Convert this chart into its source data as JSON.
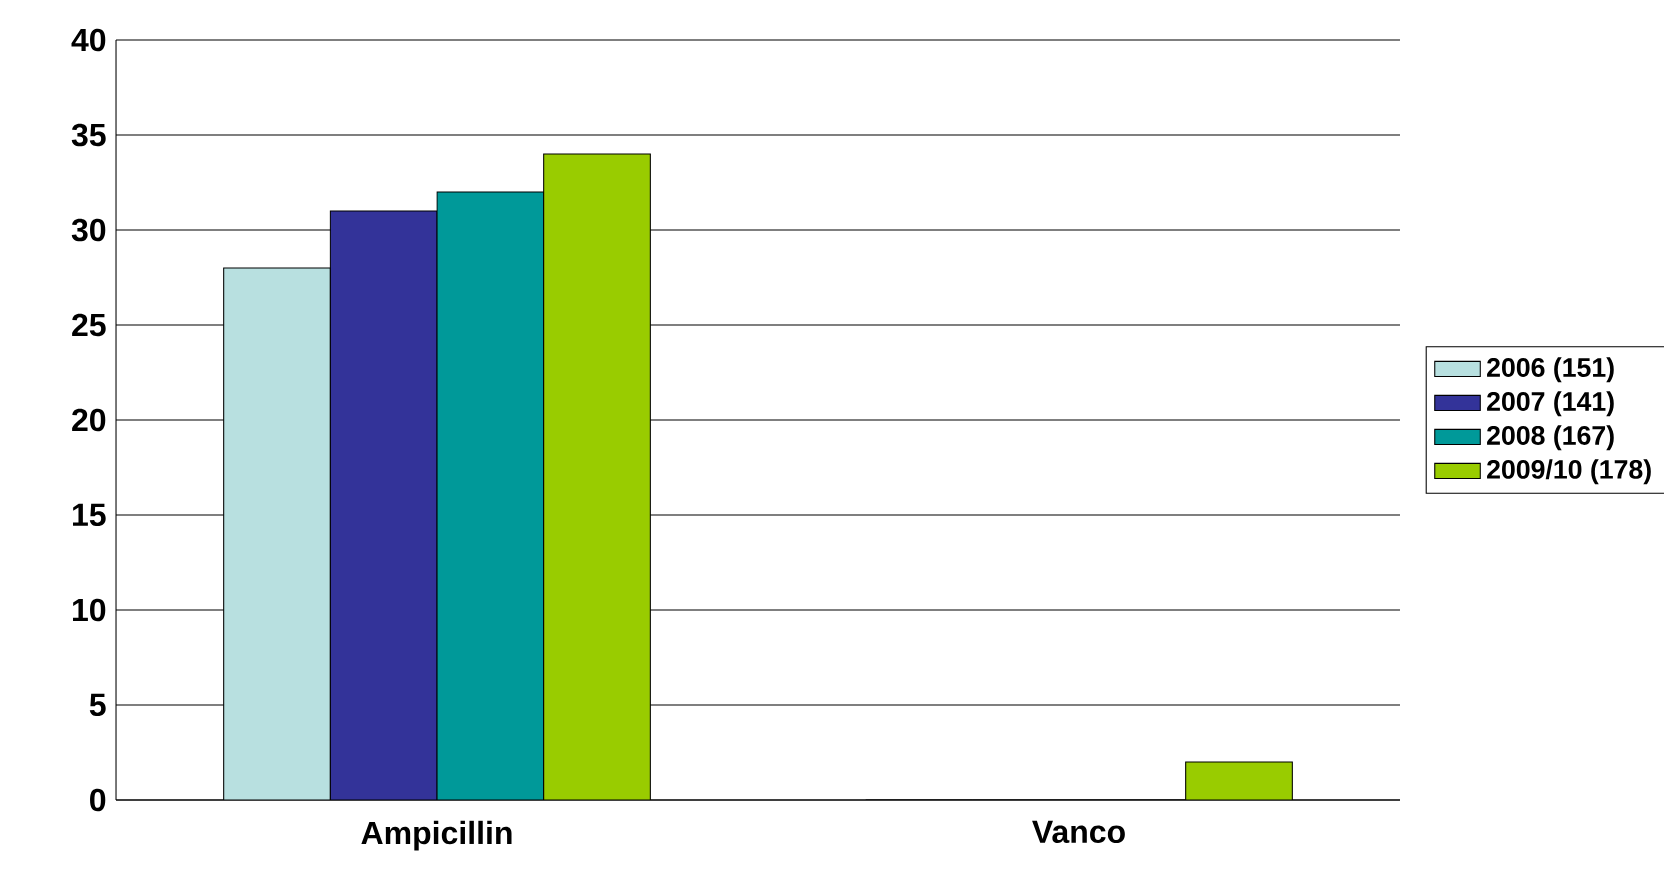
{
  "chart_data": {
    "type": "bar",
    "categories": [
      "Ampicillin",
      "Vanco"
    ],
    "series": [
      {
        "name": "2006 (151)",
        "color": "#b8e0e0",
        "values": [
          28,
          0
        ]
      },
      {
        "name": "2007 (141)",
        "color": "#333399",
        "values": [
          31,
          0
        ]
      },
      {
        "name": "2008 (167)",
        "color": "#009999",
        "values": [
          32,
          0
        ]
      },
      {
        "name": "2009/10 (178)",
        "color": "#99cc00",
        "values": [
          34,
          2
        ]
      }
    ],
    "ylim": [
      0,
      40
    ],
    "yticks": [
      0,
      5,
      10,
      15,
      20,
      25,
      30,
      35,
      40
    ],
    "grid": "y",
    "legend": "right"
  }
}
